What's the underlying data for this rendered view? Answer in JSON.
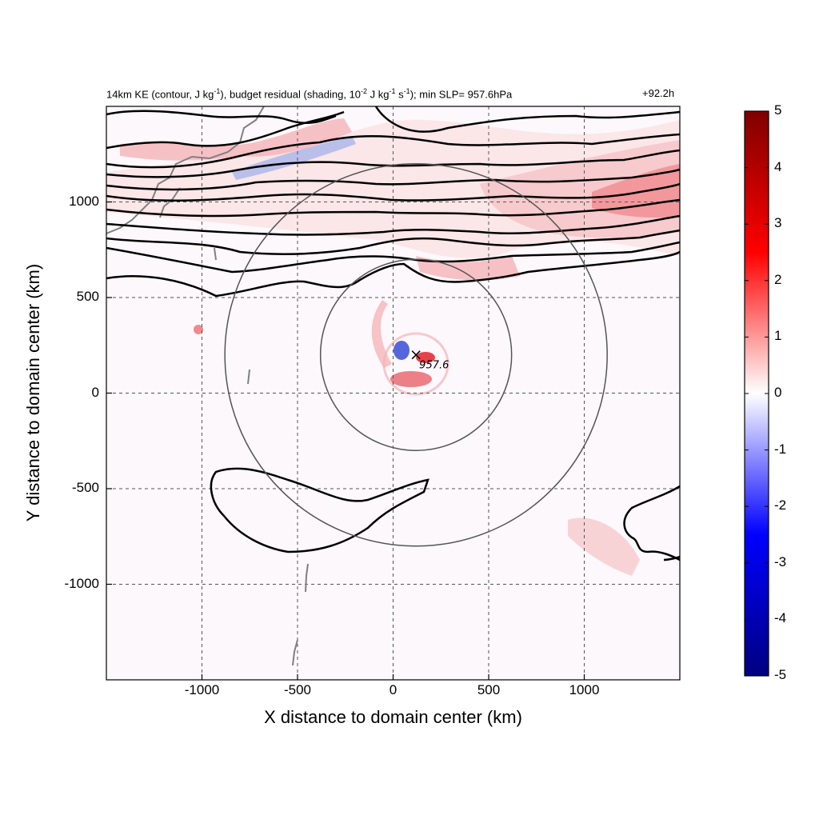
{
  "chart_data": {
    "type": "heatmap",
    "title_left_parts": [
      {
        "t": "14km KE (contour, J kg"
      },
      {
        "sup": "-1"
      },
      {
        "t": "), budget residual (shading, 10"
      },
      {
        "sup": "-2"
      },
      {
        "t": " J kg"
      },
      {
        "sup": "-1"
      },
      {
        "t": " s"
      },
      {
        "sup": "-1"
      },
      {
        "t": "); min SLP= 957.6hPa"
      }
    ],
    "title_right": "+92.2h",
    "xlabel": "X distance to domain center (km)",
    "ylabel": "Y distance to domain center (km)",
    "xlim": [
      -1500,
      1500
    ],
    "ylim": [
      -1500,
      1500
    ],
    "xticks": [
      -1000,
      -500,
      0,
      500,
      1000
    ],
    "yticks": [
      -1000,
      -500,
      0,
      500,
      1000
    ],
    "grid": true,
    "colorbar": {
      "range": [
        -5,
        5
      ],
      "ticks": [
        -5,
        -4,
        -3,
        -2,
        -1,
        0,
        1,
        2,
        3,
        4,
        5
      ],
      "colors": [
        "#000080",
        "#0000ff",
        "#ffffff",
        "#ff0000",
        "#800000"
      ]
    },
    "storm": {
      "x": 120,
      "y": 200,
      "min_slp": 957.6,
      "min_slp_label": "957.6"
    },
    "range_circles": [
      {
        "center_x": 120,
        "center_y": 200,
        "radius_km": 500
      },
      {
        "center_x": 120,
        "center_y": 200,
        "radius_km": 1000
      }
    ]
  }
}
